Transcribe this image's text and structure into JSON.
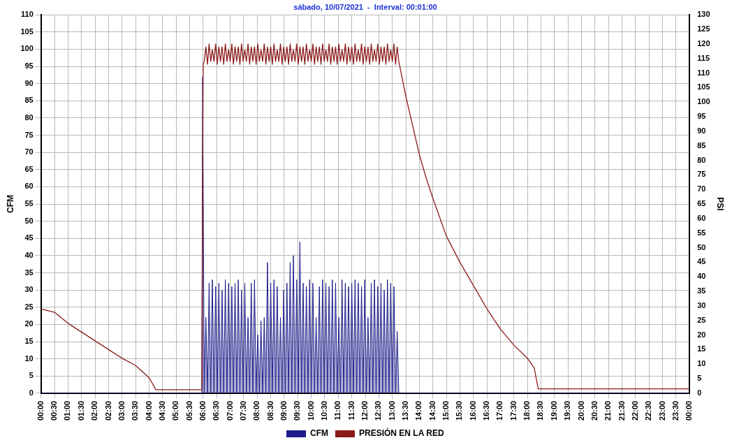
{
  "chart_data": {
    "type": "line",
    "title": "sábado, 10/07/2021  -  Interval: 00:01:00",
    "ylabel": "CFM",
    "y2label": "PSI",
    "grid": true,
    "legend": "bottom",
    "marker": "none",
    "xlim": [
      0,
      24
    ],
    "xticks": [
      {
        "value": 0,
        "label": "00:00"
      },
      {
        "value": 0.5,
        "label": "00:30"
      },
      {
        "value": 1,
        "label": "01:00"
      },
      {
        "value": 1.5,
        "label": "01:30"
      },
      {
        "value": 2,
        "label": "02:00"
      },
      {
        "value": 2.5,
        "label": "02:30"
      },
      {
        "value": 3,
        "label": "03:00"
      },
      {
        "value": 3.5,
        "label": "03:30"
      },
      {
        "value": 4,
        "label": "04:00"
      },
      {
        "value": 4.5,
        "label": "04:30"
      },
      {
        "value": 5,
        "label": "05:00"
      },
      {
        "value": 5.5,
        "label": "05:30"
      },
      {
        "value": 6,
        "label": "06:00"
      },
      {
        "value": 6.5,
        "label": "06:30"
      },
      {
        "value": 7,
        "label": "07:00"
      },
      {
        "value": 7.5,
        "label": "07:30"
      },
      {
        "value": 8,
        "label": "08:00"
      },
      {
        "value": 8.5,
        "label": "08:30"
      },
      {
        "value": 9,
        "label": "09:00"
      },
      {
        "value": 9.5,
        "label": "09:30"
      },
      {
        "value": 10,
        "label": "10:00"
      },
      {
        "value": 10.5,
        "label": "10:30"
      },
      {
        "value": 11,
        "label": "11:00"
      },
      {
        "value": 11.5,
        "label": "11:30"
      },
      {
        "value": 12,
        "label": "12:00"
      },
      {
        "value": 12.5,
        "label": "12:30"
      },
      {
        "value": 13,
        "label": "13:00"
      },
      {
        "value": 13.5,
        "label": "13:30"
      },
      {
        "value": 14,
        "label": "14:00"
      },
      {
        "value": 14.5,
        "label": "14:30"
      },
      {
        "value": 15,
        "label": "15:00"
      },
      {
        "value": 15.5,
        "label": "15:30"
      },
      {
        "value": 16,
        "label": "16:00"
      },
      {
        "value": 16.5,
        "label": "16:30"
      },
      {
        "value": 17,
        "label": "17:00"
      },
      {
        "value": 17.5,
        "label": "17:30"
      },
      {
        "value": 18,
        "label": "18:00"
      },
      {
        "value": 18.5,
        "label": "18:30"
      },
      {
        "value": 19,
        "label": "19:00"
      },
      {
        "value": 19.5,
        "label": "19:30"
      },
      {
        "value": 20,
        "label": "20:00"
      },
      {
        "value": 20.5,
        "label": "20:30"
      },
      {
        "value": 21,
        "label": "21:00"
      },
      {
        "value": 21.5,
        "label": "21:30"
      },
      {
        "value": 22,
        "label": "22:00"
      },
      {
        "value": 22.5,
        "label": "22:30"
      },
      {
        "value": 23,
        "label": "23:00"
      },
      {
        "value": 23.5,
        "label": "23:30"
      },
      {
        "value": 24,
        "label": "00:00"
      }
    ],
    "ylim": [
      0,
      110
    ],
    "yticks": [
      0,
      5,
      10,
      15,
      20,
      25,
      30,
      35,
      40,
      45,
      50,
      55,
      60,
      65,
      70,
      75,
      80,
      85,
      90,
      95,
      100,
      105,
      110
    ],
    "y2lim": [
      0,
      130
    ],
    "y2ticks": [
      0,
      5,
      10,
      15,
      20,
      25,
      30,
      35,
      40,
      45,
      50,
      55,
      60,
      65,
      70,
      75,
      80,
      85,
      90,
      95,
      100,
      105,
      110,
      115,
      120,
      125,
      130
    ],
    "series": [
      {
        "name": "CFM",
        "type": "area",
        "color": "#1c1c8a",
        "x": [
          0,
          5.95,
          5.98,
          6.04,
          6.1,
          6.16,
          6.22,
          6.28,
          6.34,
          6.4,
          6.46,
          6.52,
          6.58,
          6.64,
          6.7,
          6.76,
          6.82,
          6.88,
          6.94,
          7,
          7.06,
          7.12,
          7.18,
          7.24,
          7.3,
          7.36,
          7.42,
          7.48,
          7.54,
          7.6,
          7.66,
          7.72,
          7.78,
          7.84,
          7.9,
          7.96,
          8.02,
          8.08,
          8.14,
          8.2,
          8.26,
          8.32,
          8.38,
          8.44,
          8.5,
          8.56,
          8.62,
          8.68,
          8.74,
          8.8,
          8.86,
          8.92,
          8.98,
          9.04,
          9.1,
          9.16,
          9.22,
          9.28,
          9.34,
          9.4,
          9.46,
          9.52,
          9.58,
          9.64,
          9.7,
          9.76,
          9.82,
          9.88,
          9.94,
          10,
          10.06,
          10.12,
          10.18,
          10.24,
          10.3,
          10.36,
          10.42,
          10.48,
          10.54,
          10.6,
          10.66,
          10.72,
          10.78,
          10.84,
          10.9,
          10.96,
          11.02,
          11.08,
          11.14,
          11.2,
          11.26,
          11.32,
          11.38,
          11.44,
          11.5,
          11.56,
          11.62,
          11.68,
          11.74,
          11.8,
          11.86,
          11.92,
          11.98,
          12.04,
          12.1,
          12.16,
          12.22,
          12.28,
          12.34,
          12.4,
          12.46,
          12.52,
          12.58,
          12.64,
          12.7,
          12.76,
          12.82,
          12.88,
          12.94,
          13,
          13.06,
          13.12,
          13.18,
          13.24,
          24
        ],
        "values": [
          0,
          0,
          92,
          0,
          22,
          0,
          32,
          0,
          33,
          0,
          31,
          0,
          32,
          0,
          30,
          0,
          33,
          0,
          32,
          0,
          31,
          0,
          32,
          0,
          33,
          0,
          30,
          0,
          32,
          0,
          22,
          0,
          32,
          0,
          33,
          0,
          17,
          0,
          21,
          0,
          22,
          0,
          38,
          0,
          32,
          0,
          33,
          0,
          31,
          0,
          22,
          0,
          30,
          0,
          32,
          0,
          38,
          0,
          40,
          0,
          33,
          0,
          44,
          0,
          32,
          0,
          31,
          0,
          33,
          0,
          32,
          0,
          22,
          0,
          31,
          0,
          33,
          0,
          32,
          0,
          31,
          0,
          33,
          0,
          32,
          0,
          22,
          0,
          33,
          0,
          32,
          0,
          31,
          0,
          32,
          0,
          33,
          0,
          32,
          0,
          31,
          0,
          33,
          0,
          22,
          0,
          32,
          0,
          33,
          0,
          31,
          0,
          32,
          0,
          30,
          0,
          33,
          0,
          32,
          0,
          31,
          0,
          18,
          0,
          0
        ]
      },
      {
        "name": "PRESIÓN EN LA RED",
        "type": "line",
        "axis": "y2",
        "color": "#8b1a1a",
        "x": [
          0,
          0.5,
          1,
          1.5,
          2,
          2.5,
          3,
          3.5,
          4,
          4.25,
          5.95,
          6,
          6.04,
          6.1,
          6.16,
          6.22,
          6.28,
          6.34,
          6.4,
          6.46,
          6.52,
          6.58,
          6.64,
          6.7,
          6.76,
          6.82,
          6.88,
          6.94,
          7,
          7.06,
          7.12,
          7.18,
          7.24,
          7.3,
          7.36,
          7.42,
          7.48,
          7.54,
          7.6,
          7.66,
          7.72,
          7.78,
          7.84,
          7.9,
          7.96,
          8.02,
          8.08,
          8.14,
          8.2,
          8.26,
          8.32,
          8.38,
          8.44,
          8.5,
          8.56,
          8.62,
          8.68,
          8.74,
          8.8,
          8.86,
          8.92,
          8.98,
          9.04,
          9.1,
          9.16,
          9.22,
          9.28,
          9.34,
          9.4,
          9.46,
          9.52,
          9.58,
          9.64,
          9.7,
          9.76,
          9.82,
          9.88,
          9.94,
          10,
          10.06,
          10.12,
          10.18,
          10.24,
          10.3,
          10.36,
          10.42,
          10.48,
          10.54,
          10.6,
          10.66,
          10.72,
          10.78,
          10.84,
          10.9,
          10.96,
          11.02,
          11.08,
          11.14,
          11.2,
          11.26,
          11.32,
          11.38,
          11.44,
          11.5,
          11.56,
          11.62,
          11.68,
          11.74,
          11.8,
          11.86,
          11.92,
          11.98,
          12.04,
          12.1,
          12.16,
          12.22,
          12.28,
          12.34,
          12.4,
          12.46,
          12.52,
          12.58,
          12.64,
          12.7,
          12.76,
          12.82,
          12.88,
          12.94,
          13,
          13.06,
          13.12,
          13.18,
          13.24,
          13.5,
          13.75,
          14,
          14.25,
          14.5,
          15,
          15.5,
          16,
          16.5,
          17,
          17.5,
          18,
          18.25,
          18.4,
          24
        ],
        "values": [
          29,
          27.8,
          24,
          21,
          18,
          15,
          12,
          9.5,
          5.3,
          1.2,
          1.2,
          113,
          114,
          119,
          113,
          120,
          114,
          118,
          114,
          120,
          113,
          119,
          114,
          119,
          113,
          120,
          114,
          118,
          114,
          120,
          113,
          119,
          114,
          119,
          113,
          120,
          114,
          118,
          114,
          120,
          113,
          119,
          114,
          119,
          113,
          120,
          114,
          118,
          114,
          120,
          113,
          119,
          114,
          119,
          113,
          120,
          114,
          118,
          114,
          120,
          113,
          119,
          114,
          119,
          113,
          120,
          114,
          118,
          114,
          120,
          113,
          119,
          114,
          119,
          113,
          120,
          114,
          118,
          114,
          120,
          113,
          119,
          114,
          119,
          113,
          120,
          114,
          118,
          114,
          120,
          113,
          119,
          114,
          119,
          113,
          120,
          114,
          118,
          114,
          120,
          113,
          119,
          114,
          119,
          113,
          120,
          114,
          118,
          114,
          120,
          113,
          119,
          114,
          119,
          113,
          120,
          114,
          118,
          114,
          120,
          113,
          119,
          114,
          119,
          113,
          120,
          114,
          118,
          114,
          120,
          113,
          119,
          114,
          102,
          92,
          82,
          74,
          67,
          54,
          45,
          37,
          29,
          22,
          16.5,
          12,
          8.7,
          1.5,
          1.5
        ]
      }
    ]
  }
}
